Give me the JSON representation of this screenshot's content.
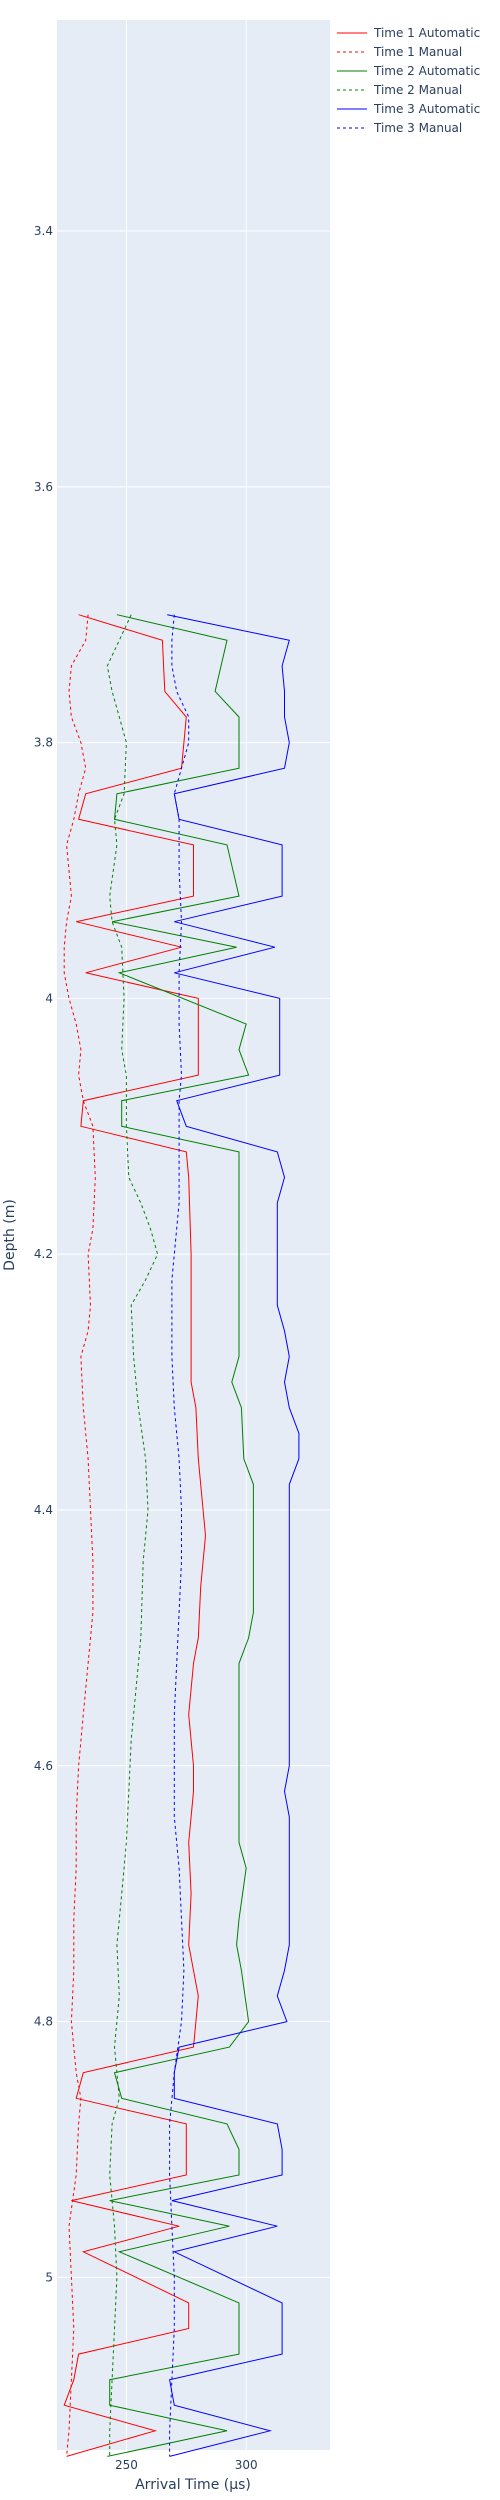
{
  "chart_data": {
    "type": "line",
    "xlabel": "Arrival Time (μs)",
    "ylabel": "Depth (m)",
    "xlim": [
      221,
      335
    ],
    "ylim": [
      5.135,
      3.235
    ],
    "y_reversed": true,
    "grid": true,
    "legend_position": "top-right outside",
    "x_ticks": [
      250,
      300
    ],
    "x_tick_labels": [
      "250",
      "300"
    ],
    "y_ticks": [
      3.4,
      3.6,
      3.8,
      4,
      4.2,
      4.4,
      4.6,
      4.8,
      5
    ],
    "y_tick_labels": [
      "3.4",
      "3.6",
      "3.8",
      "4",
      "4.2",
      "4.4",
      "4.6",
      "4.8",
      "5"
    ],
    "colors": {
      "plot_bg": "#e5ecf6",
      "red": "#ff0000",
      "green": "#008000",
      "blue": "#0000ff",
      "text": "#2a3f5f"
    },
    "series": [
      {
        "name": "Time 1 Automatic",
        "color": "#ff0000",
        "dash": "solid",
        "points": [
          [
            230,
            3.7
          ],
          [
            265,
            3.72
          ],
          [
            266,
            3.76
          ],
          [
            275,
            3.78
          ],
          [
            273,
            3.82
          ],
          [
            233,
            3.84
          ],
          [
            230,
            3.86
          ],
          [
            278,
            3.88
          ],
          [
            278,
            3.92
          ],
          [
            229,
            3.94
          ],
          [
            273,
            3.96
          ],
          [
            233,
            3.98
          ],
          [
            280,
            4.0
          ],
          [
            280,
            4.06
          ],
          [
            232,
            4.08
          ],
          [
            231,
            4.1
          ],
          [
            275,
            4.12
          ],
          [
            276,
            4.14
          ],
          [
            277,
            4.2
          ],
          [
            277,
            4.3
          ],
          [
            279,
            4.32
          ],
          [
            280,
            4.36
          ],
          [
            282,
            4.4
          ],
          [
            283,
            4.42
          ],
          [
            281,
            4.46
          ],
          [
            280,
            4.5
          ],
          [
            278,
            4.52
          ],
          [
            276,
            4.56
          ],
          [
            278,
            4.6
          ],
          [
            278,
            4.62
          ],
          [
            276,
            4.66
          ],
          [
            277,
            4.7
          ],
          [
            276,
            4.74
          ],
          [
            280,
            4.78
          ],
          [
            278,
            4.82
          ],
          [
            232,
            4.84
          ],
          [
            229,
            4.86
          ],
          [
            275,
            4.88
          ],
          [
            275,
            4.92
          ],
          [
            227,
            4.94
          ],
          [
            272,
            4.96
          ],
          [
            232,
            4.98
          ],
          [
            276,
            5.02
          ],
          [
            276,
            5.04
          ],
          [
            230,
            5.06
          ],
          [
            228,
            5.08
          ],
          [
            224,
            5.1
          ],
          [
            262,
            5.12
          ],
          [
            225,
            5.14
          ]
        ]
      },
      {
        "name": "Time 1 Manual",
        "color": "#ff0000",
        "dash": "dash",
        "points": [
          [
            234,
            3.7
          ],
          [
            233,
            3.72
          ],
          [
            227,
            3.74
          ],
          [
            226,
            3.76
          ],
          [
            227,
            3.78
          ],
          [
            231,
            3.8
          ],
          [
            233,
            3.82
          ],
          [
            230,
            3.84
          ],
          [
            228,
            3.86
          ],
          [
            225,
            3.88
          ],
          [
            227,
            3.92
          ],
          [
            225,
            3.94
          ],
          [
            224,
            3.96
          ],
          [
            224,
            3.98
          ],
          [
            226,
            4.0
          ],
          [
            229,
            4.02
          ],
          [
            231,
            4.04
          ],
          [
            230,
            4.06
          ],
          [
            232,
            4.08
          ],
          [
            236,
            4.1
          ],
          [
            237,
            4.14
          ],
          [
            236,
            4.18
          ],
          [
            234,
            4.2
          ],
          [
            235,
            4.24
          ],
          [
            234,
            4.26
          ],
          [
            231,
            4.28
          ],
          [
            232,
            4.32
          ],
          [
            234,
            4.36
          ],
          [
            235,
            4.4
          ],
          [
            236,
            4.44
          ],
          [
            236,
            4.48
          ],
          [
            234,
            4.52
          ],
          [
            232,
            4.56
          ],
          [
            230,
            4.6
          ],
          [
            229,
            4.64
          ],
          [
            229,
            4.68
          ],
          [
            228,
            4.72
          ],
          [
            228,
            4.76
          ],
          [
            227,
            4.8
          ],
          [
            229,
            4.84
          ],
          [
            231,
            4.86
          ],
          [
            230,
            4.88
          ],
          [
            229,
            4.92
          ],
          [
            226,
            4.96
          ],
          [
            227,
            5.0
          ],
          [
            228,
            5.04
          ],
          [
            227,
            5.08
          ],
          [
            226,
            5.12
          ],
          [
            225,
            5.14
          ]
        ]
      },
      {
        "name": "Time 2 Automatic",
        "color": "#008000",
        "dash": "solid",
        "points": [
          [
            246,
            3.7
          ],
          [
            292,
            3.72
          ],
          [
            287,
            3.76
          ],
          [
            297,
            3.78
          ],
          [
            297,
            3.82
          ],
          [
            246,
            3.84
          ],
          [
            245,
            3.86
          ],
          [
            292,
            3.88
          ],
          [
            297,
            3.92
          ],
          [
            244,
            3.94
          ],
          [
            296,
            3.96
          ],
          [
            247,
            3.98
          ],
          [
            300,
            4.02
          ],
          [
            297,
            4.04
          ],
          [
            301,
            4.06
          ],
          [
            248,
            4.08
          ],
          [
            248,
            4.1
          ],
          [
            297,
            4.12
          ],
          [
            297,
            4.28
          ],
          [
            294,
            4.3
          ],
          [
            298,
            4.32
          ],
          [
            299,
            4.36
          ],
          [
            303,
            4.38
          ],
          [
            303,
            4.48
          ],
          [
            301,
            4.5
          ],
          [
            297,
            4.52
          ],
          [
            297,
            4.66
          ],
          [
            300,
            4.68
          ],
          [
            297,
            4.72
          ],
          [
            296,
            4.74
          ],
          [
            298,
            4.76
          ],
          [
            301,
            4.8
          ],
          [
            293,
            4.82
          ],
          [
            245,
            4.84
          ],
          [
            248,
            4.86
          ],
          [
            292,
            4.88
          ],
          [
            297,
            4.9
          ],
          [
            297,
            4.92
          ],
          [
            243,
            4.94
          ],
          [
            293,
            4.96
          ],
          [
            247,
            4.98
          ],
          [
            297,
            5.02
          ],
          [
            297,
            5.06
          ],
          [
            243,
            5.08
          ],
          [
            243,
            5.1
          ],
          [
            292,
            5.12
          ],
          [
            242,
            5.14
          ]
        ]
      },
      {
        "name": "Time 2 Manual",
        "color": "#008000",
        "dash": "dash",
        "points": [
          [
            252,
            3.7
          ],
          [
            247,
            3.72
          ],
          [
            242,
            3.74
          ],
          [
            244,
            3.76
          ],
          [
            247,
            3.78
          ],
          [
            250,
            3.8
          ],
          [
            249,
            3.84
          ],
          [
            245,
            3.86
          ],
          [
            246,
            3.88
          ],
          [
            243,
            3.92
          ],
          [
            244,
            3.94
          ],
          [
            248,
            3.96
          ],
          [
            249,
            4.0
          ],
          [
            248,
            4.04
          ],
          [
            250,
            4.06
          ],
          [
            250,
            4.1
          ],
          [
            251,
            4.14
          ],
          [
            256,
            4.16
          ],
          [
            260,
            4.18
          ],
          [
            263,
            4.2
          ],
          [
            258,
            4.22
          ],
          [
            252,
            4.24
          ],
          [
            253,
            4.28
          ],
          [
            255,
            4.32
          ],
          [
            258,
            4.36
          ],
          [
            259,
            4.4
          ],
          [
            257,
            4.44
          ],
          [
            256,
            4.5
          ],
          [
            254,
            4.54
          ],
          [
            252,
            4.58
          ],
          [
            251,
            4.62
          ],
          [
            250,
            4.66
          ],
          [
            248,
            4.7
          ],
          [
            246,
            4.74
          ],
          [
            247,
            4.78
          ],
          [
            245,
            4.82
          ],
          [
            247,
            4.86
          ],
          [
            244,
            4.88
          ],
          [
            243,
            4.92
          ],
          [
            245,
            4.96
          ],
          [
            246,
            5.0
          ],
          [
            245,
            5.04
          ],
          [
            244,
            5.08
          ],
          [
            243,
            5.12
          ],
          [
            243,
            5.14
          ]
        ]
      },
      {
        "name": "Time 3 Automatic",
        "color": "#0000ff",
        "dash": "solid",
        "points": [
          [
            267,
            3.7
          ],
          [
            318,
            3.72
          ],
          [
            315,
            3.74
          ],
          [
            316,
            3.76
          ],
          [
            316,
            3.78
          ],
          [
            318,
            3.8
          ],
          [
            316,
            3.82
          ],
          [
            270,
            3.84
          ],
          [
            272,
            3.86
          ],
          [
            315,
            3.88
          ],
          [
            315,
            3.92
          ],
          [
            270,
            3.94
          ],
          [
            312,
            3.96
          ],
          [
            270,
            3.98
          ],
          [
            314,
            4.0
          ],
          [
            314,
            4.06
          ],
          [
            271,
            4.08
          ],
          [
            275,
            4.1
          ],
          [
            313,
            4.12
          ],
          [
            316,
            4.14
          ],
          [
            313,
            4.16
          ],
          [
            313,
            4.24
          ],
          [
            316,
            4.26
          ],
          [
            318,
            4.28
          ],
          [
            316,
            4.3
          ],
          [
            318,
            4.32
          ],
          [
            322,
            4.34
          ],
          [
            322,
            4.36
          ],
          [
            318,
            4.38
          ],
          [
            318,
            4.6
          ],
          [
            316,
            4.62
          ],
          [
            318,
            4.64
          ],
          [
            318,
            4.74
          ],
          [
            316,
            4.76
          ],
          [
            313,
            4.78
          ],
          [
            317,
            4.8
          ],
          [
            272,
            4.82
          ],
          [
            270,
            4.84
          ],
          [
            270,
            4.86
          ],
          [
            313,
            4.88
          ],
          [
            315,
            4.9
          ],
          [
            315,
            4.92
          ],
          [
            269,
            4.94
          ],
          [
            313,
            4.96
          ],
          [
            270,
            4.98
          ],
          [
            315,
            5.02
          ],
          [
            315,
            5.06
          ],
          [
            268,
            5.08
          ],
          [
            270,
            5.1
          ],
          [
            310,
            5.12
          ],
          [
            268,
            5.14
          ]
        ]
      },
      {
        "name": "Time 3 Manual",
        "color": "#0000ff",
        "dash": "dash",
        "points": [
          [
            270,
            3.7
          ],
          [
            269,
            3.72
          ],
          [
            269,
            3.74
          ],
          [
            271,
            3.76
          ],
          [
            276,
            3.78
          ],
          [
            276,
            3.8
          ],
          [
            273,
            3.82
          ],
          [
            270,
            3.84
          ],
          [
            272,
            3.86
          ],
          [
            272,
            3.9
          ],
          [
            273,
            3.94
          ],
          [
            272,
            3.98
          ],
          [
            272,
            4.02
          ],
          [
            273,
            4.06
          ],
          [
            272,
            4.08
          ],
          [
            272,
            4.12
          ],
          [
            272,
            4.16
          ],
          [
            271,
            4.18
          ],
          [
            270,
            4.2
          ],
          [
            269,
            4.22
          ],
          [
            269,
            4.28
          ],
          [
            270,
            4.32
          ],
          [
            272,
            4.36
          ],
          [
            273,
            4.4
          ],
          [
            273,
            4.44
          ],
          [
            272,
            4.48
          ],
          [
            271,
            4.52
          ],
          [
            270,
            4.56
          ],
          [
            270,
            4.6
          ],
          [
            270,
            4.64
          ],
          [
            272,
            4.68
          ],
          [
            273,
            4.72
          ],
          [
            274,
            4.76
          ],
          [
            273,
            4.8
          ],
          [
            270,
            4.84
          ],
          [
            268,
            4.88
          ],
          [
            268,
            4.92
          ],
          [
            269,
            4.96
          ],
          [
            270,
            5.0
          ],
          [
            270,
            5.04
          ],
          [
            269,
            5.08
          ],
          [
            268,
            5.12
          ],
          [
            268,
            5.14
          ]
        ]
      }
    ]
  }
}
